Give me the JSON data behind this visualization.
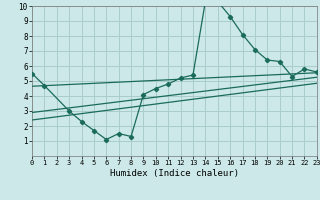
{
  "title": "",
  "xlabel": "Humidex (Indice chaleur)",
  "bg_color": "#cce8e8",
  "grid_color": "#aacccc",
  "line_color": "#1a6b5a",
  "xlim": [
    0,
    23
  ],
  "ylim": [
    0,
    10
  ],
  "xticks": [
    0,
    1,
    2,
    3,
    4,
    5,
    6,
    7,
    8,
    9,
    10,
    11,
    12,
    13,
    14,
    15,
    16,
    17,
    18,
    19,
    20,
    21,
    22,
    23
  ],
  "yticks": [
    1,
    2,
    3,
    4,
    5,
    6,
    7,
    8,
    9,
    10
  ],
  "curve1_x": [
    0,
    1,
    3,
    4,
    5,
    6,
    7,
    8,
    9,
    10,
    11,
    12,
    13,
    14,
    15,
    16,
    17,
    18,
    19,
    20,
    21,
    22,
    23
  ],
  "curve1_y": [
    5.5,
    4.7,
    3.0,
    2.3,
    1.7,
    1.1,
    1.5,
    1.3,
    4.1,
    4.5,
    4.8,
    5.2,
    5.4,
    10.3,
    10.3,
    9.3,
    8.1,
    7.1,
    6.4,
    6.3,
    5.3,
    5.8,
    5.6
  ],
  "curve2_x": [
    0,
    23
  ],
  "curve2_y": [
    4.65,
    5.55
  ],
  "curve3_x": [
    0,
    23
  ],
  "curve3_y": [
    2.9,
    5.25
  ],
  "curve4_x": [
    0,
    23
  ],
  "curve4_y": [
    2.4,
    4.85
  ]
}
